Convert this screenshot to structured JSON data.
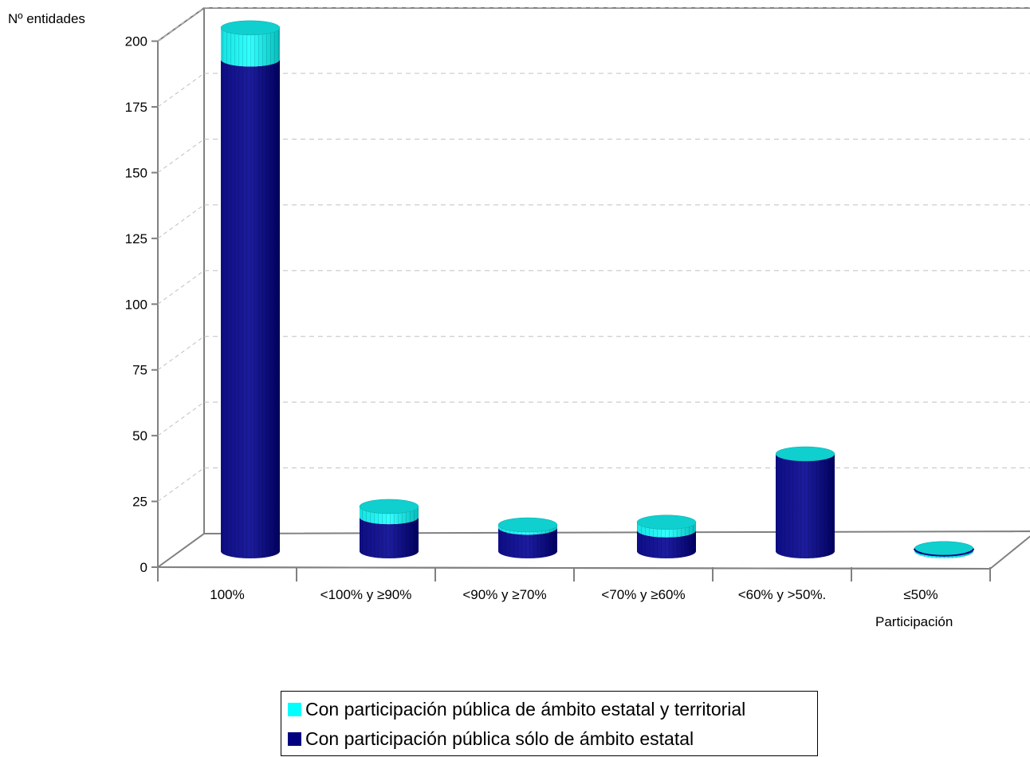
{
  "chart_data": {
    "type": "bar",
    "stacked": true,
    "style": "3d-cylinder",
    "ylabel": "Nº entidades",
    "xlabel": "Participación",
    "ylim": [
      0,
      200
    ],
    "yticks": [
      0,
      25,
      50,
      75,
      100,
      125,
      150,
      175,
      200
    ],
    "grid": true,
    "legend_position": "bottom",
    "categories": [
      "100%",
      "<100% y ≥90%",
      "<90% y ≥70%",
      "<70% y ≥60%",
      "<60% y >50%.",
      "≤50%"
    ],
    "series": [
      {
        "name": "Con participación pública sólo de ámbito estatal",
        "color": "#000080",
        "values": [
          187,
          13,
          9,
          8,
          37,
          0
        ]
      },
      {
        "name": "Con participación pública de ámbito estatal y territorial",
        "color": "#00FFFF",
        "values": [
          12,
          4,
          1,
          3,
          0,
          1
        ]
      }
    ]
  }
}
